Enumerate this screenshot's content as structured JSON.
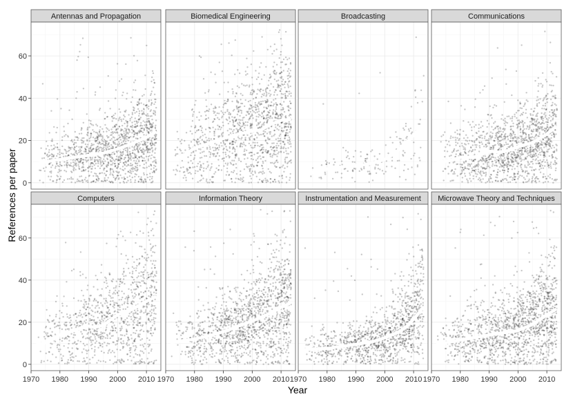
{
  "chart_data": {
    "type": "scatter",
    "xlabel": "Year",
    "ylabel": "References per paper",
    "xlim": [
      1970,
      2015
    ],
    "ylim": [
      -3,
      76
    ],
    "x_ticks": [
      1970,
      1980,
      1990,
      2000,
      2010
    ],
    "y_ticks": [
      0,
      20,
      40,
      60
    ],
    "grid": true,
    "layout": "facets 2 rows x 4 columns",
    "colors": {
      "points": "#000000",
      "trend": "#ffffff",
      "strip_fill": "#d9d9d9",
      "panel_border": "#595959",
      "grid": "#ebebeb"
    },
    "panels": [
      {
        "title": "Antennas and Propagation",
        "density": 1.0,
        "trend": [
          {
            "x": 1972,
            "y": 9
          },
          {
            "x": 1975,
            "y": 10
          },
          {
            "x": 1980,
            "y": 11
          },
          {
            "x": 1985,
            "y": 12
          },
          {
            "x": 1990,
            "y": 13
          },
          {
            "x": 1995,
            "y": 14
          },
          {
            "x": 2000,
            "y": 16
          },
          {
            "x": 2005,
            "y": 18.5
          },
          {
            "x": 2010,
            "y": 21.5
          },
          {
            "x": 2013,
            "y": 24
          }
        ]
      },
      {
        "title": "Biomedical Engineering",
        "density": 0.9,
        "trend": [
          {
            "x": 1972,
            "y": 11.5
          },
          {
            "x": 1975,
            "y": 12
          },
          {
            "x": 1978,
            "y": 14.5
          },
          {
            "x": 1980,
            "y": 16.5
          },
          {
            "x": 1985,
            "y": 18.5
          },
          {
            "x": 1990,
            "y": 21
          },
          {
            "x": 1995,
            "y": 23
          },
          {
            "x": 2000,
            "y": 24.5
          },
          {
            "x": 2003,
            "y": 25
          },
          {
            "x": 2007,
            "y": 28
          },
          {
            "x": 2010,
            "y": 29.5
          },
          {
            "x": 2013,
            "y": 30
          }
        ]
      },
      {
        "title": "Broadcasting",
        "density": 0.12,
        "trend": [
          {
            "x": 1972,
            "y": 3
          },
          {
            "x": 1975,
            "y": 5
          },
          {
            "x": 1980,
            "y": 6.5
          },
          {
            "x": 1985,
            "y": 7.5
          },
          {
            "x": 1990,
            "y": 8
          },
          {
            "x": 1995,
            "y": 9
          },
          {
            "x": 2000,
            "y": 11
          },
          {
            "x": 2003,
            "y": 13.5
          },
          {
            "x": 2006,
            "y": 17
          },
          {
            "x": 2009,
            "y": 21
          },
          {
            "x": 2013,
            "y": 27
          }
        ]
      },
      {
        "title": "Communications",
        "density": 1.0,
        "trend": [
          {
            "x": 1972,
            "y": 9.5
          },
          {
            "x": 1976,
            "y": 10.5
          },
          {
            "x": 1980,
            "y": 12
          },
          {
            "x": 1985,
            "y": 12
          },
          {
            "x": 1990,
            "y": 15
          },
          {
            "x": 1993,
            "y": 14.5
          },
          {
            "x": 1996,
            "y": 15
          },
          {
            "x": 2000,
            "y": 17
          },
          {
            "x": 2005,
            "y": 19
          },
          {
            "x": 2010,
            "y": 23
          },
          {
            "x": 2013,
            "y": 26.5
          }
        ]
      },
      {
        "title": "Computers",
        "density": 0.75,
        "trend": [
          {
            "x": 1972,
            "y": 9.5
          },
          {
            "x": 1976,
            "y": 10.5
          },
          {
            "x": 1980,
            "y": 14
          },
          {
            "x": 1985,
            "y": 16
          },
          {
            "x": 1989,
            "y": 18.5
          },
          {
            "x": 1992,
            "y": 17.5
          },
          {
            "x": 1995,
            "y": 18.5
          },
          {
            "x": 2000,
            "y": 23.5
          },
          {
            "x": 2005,
            "y": 26
          },
          {
            "x": 2010,
            "y": 30
          },
          {
            "x": 2013,
            "y": 32
          }
        ]
      },
      {
        "title": "Information Theory",
        "density": 1.0,
        "trend": [
          {
            "x": 1972,
            "y": 10.5
          },
          {
            "x": 1980,
            "y": 12
          },
          {
            "x": 1985,
            "y": 13.5
          },
          {
            "x": 1990,
            "y": 15.5
          },
          {
            "x": 1995,
            "y": 18
          },
          {
            "x": 2000,
            "y": 20.5
          },
          {
            "x": 2005,
            "y": 23.5
          },
          {
            "x": 2010,
            "y": 27
          },
          {
            "x": 2013,
            "y": 29
          }
        ]
      },
      {
        "title": "Instrumentation and Measurement",
        "density": 0.85,
        "trend": [
          {
            "x": 1972,
            "y": 7
          },
          {
            "x": 1980,
            "y": 7.5
          },
          {
            "x": 1985,
            "y": 8.5
          },
          {
            "x": 1990,
            "y": 9.5
          },
          {
            "x": 1995,
            "y": 10.5
          },
          {
            "x": 2000,
            "y": 12.5
          },
          {
            "x": 2005,
            "y": 15.5
          },
          {
            "x": 2008,
            "y": 18.5
          },
          {
            "x": 2011,
            "y": 23
          },
          {
            "x": 2013,
            "y": 26.5
          }
        ]
      },
      {
        "title": "Microwave Theory and Techniques",
        "density": 1.0,
        "trend": [
          {
            "x": 1972,
            "y": 9.5
          },
          {
            "x": 1980,
            "y": 11.5
          },
          {
            "x": 1990,
            "y": 14
          },
          {
            "x": 1995,
            "y": 15
          },
          {
            "x": 2000,
            "y": 16
          },
          {
            "x": 2005,
            "y": 19
          },
          {
            "x": 2010,
            "y": 23.5
          },
          {
            "x": 2013,
            "y": 26
          }
        ]
      }
    ]
  }
}
